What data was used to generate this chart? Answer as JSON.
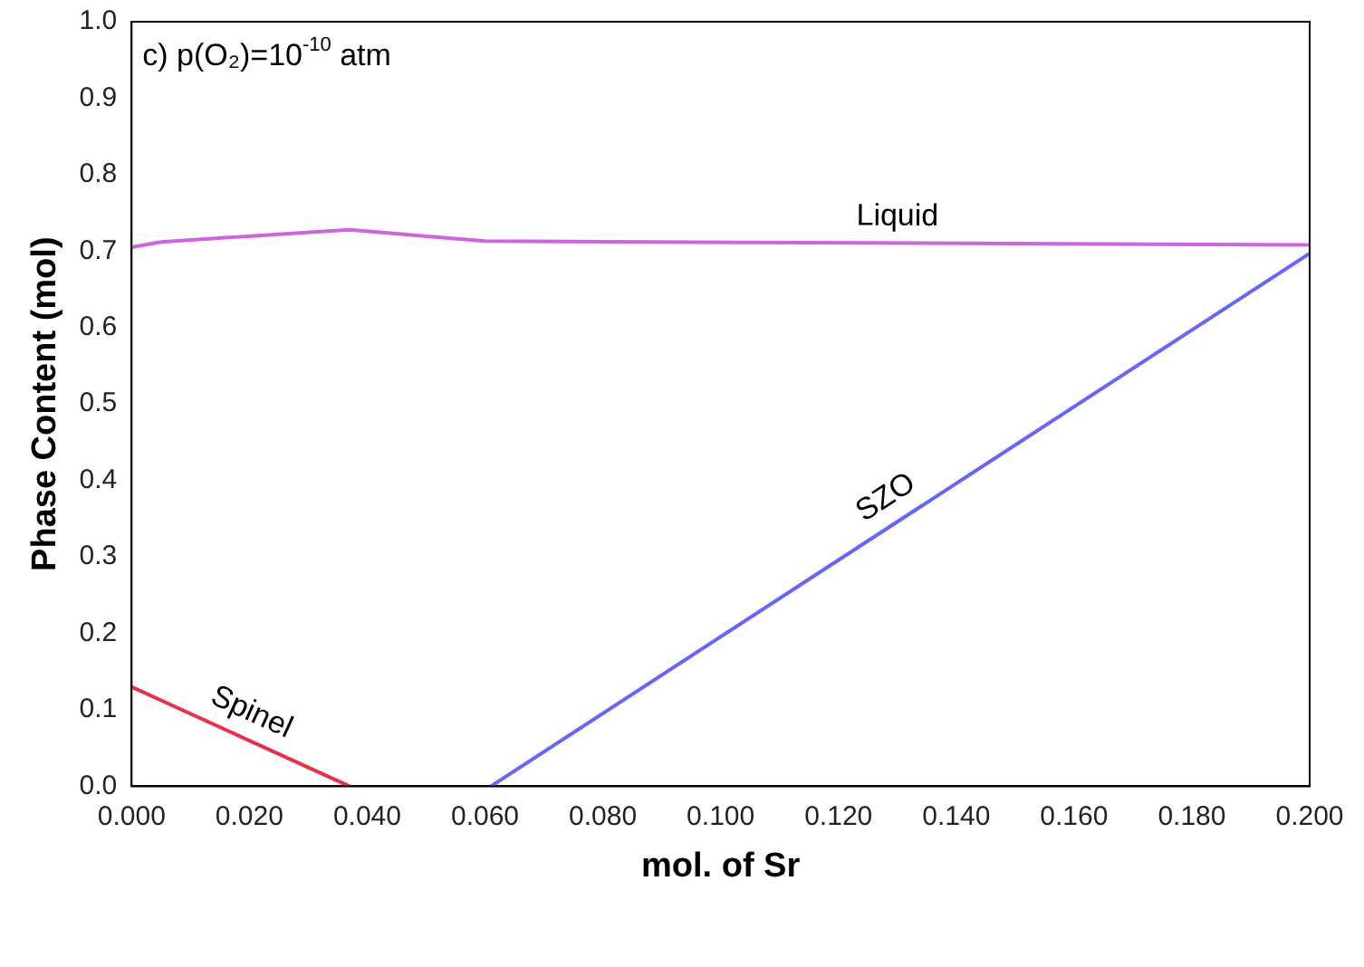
{
  "chart_data": {
    "type": "line",
    "title": "c) p(O₂)=10$^{-10}$ atm",
    "xlabel": "mol. of Sr",
    "ylabel": "Phase Content (mol)",
    "series": [
      {
        "name": "Liquid",
        "color": "#cc66dd",
        "x": [
          0,
          0.005,
          0.037,
          0.06,
          0.2
        ],
        "values": [
          0.705,
          0.712,
          0.728,
          0.713,
          0.708
        ]
      },
      {
        "name": "SZO",
        "color": "#6666ff",
        "x": [
          0.061,
          0.2
        ],
        "values": [
          0,
          0.697
        ]
      },
      {
        "name": "Spinel",
        "color": "#e8304a",
        "x": [
          0,
          0.037
        ],
        "values": [
          0.13,
          0
        ]
      }
    ],
    "xlim": [
      0,
      0.2
    ],
    "xticks": [
      {
        "value": 0,
        "label": "0.000"
      },
      {
        "value": 0.02,
        "label": "0.020"
      },
      {
        "value": 0.04,
        "label": "0.040"
      },
      {
        "value": 0.06,
        "label": "0.060"
      },
      {
        "value": 0.08,
        "label": "0.080"
      },
      {
        "value": 0.1,
        "label": "0.100"
      },
      {
        "value": 0.12,
        "label": "0.120"
      },
      {
        "value": 0.14,
        "label": "0.140"
      },
      {
        "value": 0.16,
        "label": "0.160"
      },
      {
        "value": 0.18,
        "label": "0.180"
      },
      {
        "value": 0.2,
        "label": "0.200"
      }
    ],
    "ylim": [
      0,
      1
    ],
    "yticks": [
      {
        "value": 0,
        "label": "0.0"
      },
      {
        "value": 0.1,
        "label": "0.1"
      },
      {
        "value": 0.2,
        "label": "0.2"
      },
      {
        "value": 0.3,
        "label": "0.3"
      },
      {
        "value": 0.4,
        "label": "0.4"
      },
      {
        "value": 0.5,
        "label": "0.5"
      },
      {
        "value": 0.6,
        "label": "0.6"
      },
      {
        "value": 0.7,
        "label": "0.7"
      },
      {
        "value": 0.8,
        "label": "0.8"
      },
      {
        "value": 0.9,
        "label": "0.9"
      },
      {
        "value": 1,
        "label": "1.0"
      }
    ],
    "grid": false,
    "legend": false,
    "marker": "none",
    "line_style": "solid"
  }
}
